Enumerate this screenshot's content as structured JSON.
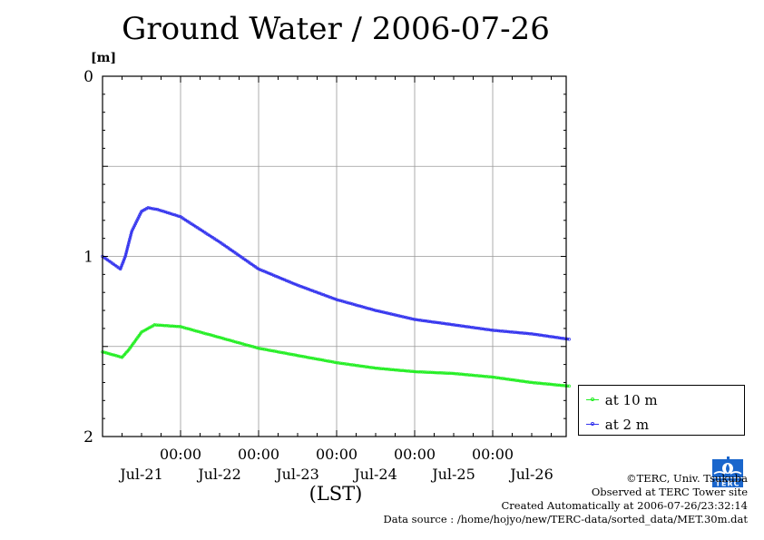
{
  "title": "Ground Water / 2006-07-26",
  "unit": "[m]",
  "x_axis_label": "(LST)",
  "legend": [
    {
      "label": "at 10 m",
      "color": "#22ee22"
    },
    {
      "label": "at 2 m",
      "color": "#3333ee"
    }
  ],
  "credits": {
    "copyright": "©TERC, Univ. Tsukuba",
    "observed": "Observed at TERC Tower site",
    "created": "Created Automatically at 2006-07-26/23:32:14",
    "source": "Data source : /home/hojyo/new/TERC-data/sorted_data/MET.30m.dat"
  },
  "logo_text": "TERC",
  "chart_data": {
    "type": "line",
    "title": "Ground Water / 2006-07-26",
    "ylabel": "[m]",
    "xlabel": "(LST)",
    "y_inverted": true,
    "ylim": [
      0,
      2
    ],
    "yticks": [
      0,
      1,
      2
    ],
    "yticks_labels": [
      "0",
      "1",
      "2"
    ],
    "y_gridlines": [
      0.5,
      1,
      1.5
    ],
    "xlim": [
      "2006-07-20T00:00",
      "2006-07-26T00:00"
    ],
    "xticks": [
      {
        "time": "2006-07-21T00:00",
        "label": "00:00",
        "date": "Jul-21"
      },
      {
        "time": "2006-07-22T00:00",
        "label": "00:00",
        "date": "Jul-22"
      },
      {
        "time": "2006-07-23T00:00",
        "label": "00:00",
        "date": "Jul-23"
      },
      {
        "time": "2006-07-24T00:00",
        "label": "00:00",
        "date": "Jul-24"
      },
      {
        "time": "2006-07-25T00:00",
        "label": "00:00",
        "date": "Jul-25"
      },
      {
        "time": "2006-07-26T00:00",
        "label": "",
        "date": "Jul-26"
      }
    ],
    "grid": true,
    "legend_position": "right-bottom, outside plot",
    "series": [
      {
        "name": "at 2 m",
        "color": "#3333ee",
        "points": [
          [
            "2006-07-20T00:00",
            1.0
          ],
          [
            "2006-07-20T05:30",
            1.07
          ],
          [
            "2006-07-20T07:00",
            1.0
          ],
          [
            "2006-07-20T09:00",
            0.86
          ],
          [
            "2006-07-20T12:00",
            0.75
          ],
          [
            "2006-07-20T14:00",
            0.73
          ],
          [
            "2006-07-20T17:00",
            0.74
          ],
          [
            "2006-07-21T00:00",
            0.78
          ],
          [
            "2006-07-21T12:00",
            0.92
          ],
          [
            "2006-07-22T00:00",
            1.07
          ],
          [
            "2006-07-22T12:00",
            1.16
          ],
          [
            "2006-07-23T00:00",
            1.24
          ],
          [
            "2006-07-23T12:00",
            1.3
          ],
          [
            "2006-07-24T00:00",
            1.35
          ],
          [
            "2006-07-24T12:00",
            1.38
          ],
          [
            "2006-07-25T00:00",
            1.41
          ],
          [
            "2006-07-25T12:00",
            1.43
          ],
          [
            "2006-07-25T23:30",
            1.46
          ]
        ]
      },
      {
        "name": "at 10 m",
        "color": "#22ee22",
        "points": [
          [
            "2006-07-20T00:00",
            1.53
          ],
          [
            "2006-07-20T06:00",
            1.56
          ],
          [
            "2006-07-20T08:00",
            1.52
          ],
          [
            "2006-07-20T12:00",
            1.42
          ],
          [
            "2006-07-20T16:00",
            1.38
          ],
          [
            "2006-07-21T00:00",
            1.39
          ],
          [
            "2006-07-21T12:00",
            1.45
          ],
          [
            "2006-07-22T00:00",
            1.51
          ],
          [
            "2006-07-22T12:00",
            1.55
          ],
          [
            "2006-07-23T00:00",
            1.59
          ],
          [
            "2006-07-23T12:00",
            1.62
          ],
          [
            "2006-07-24T00:00",
            1.64
          ],
          [
            "2006-07-24T12:00",
            1.65
          ],
          [
            "2006-07-25T00:00",
            1.67
          ],
          [
            "2006-07-25T12:00",
            1.7
          ],
          [
            "2006-07-25T23:30",
            1.72
          ]
        ]
      }
    ]
  }
}
